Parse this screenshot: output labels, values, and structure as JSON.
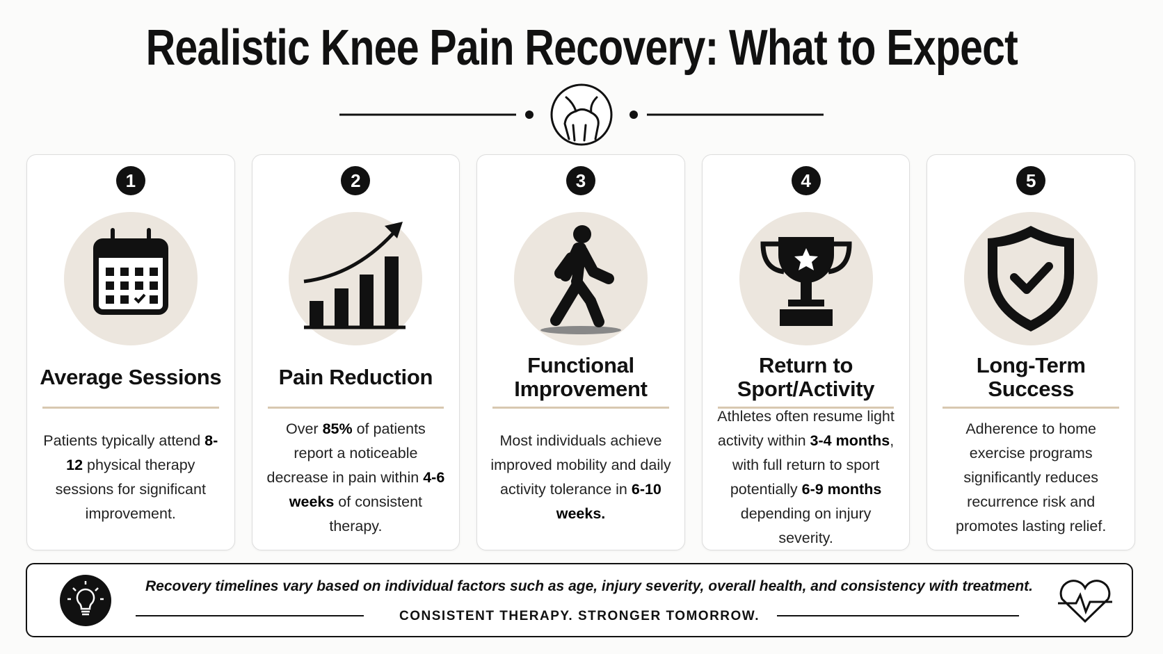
{
  "title": "Realistic Knee Pain Recovery: What to Expect",
  "cards": [
    {
      "number": 1,
      "heading": [
        "Average Sessions"
      ],
      "body": [
        {
          "text": "Patients typically attend ",
          "bold": false
        },
        {
          "text": "8-12",
          "bold": true
        },
        {
          "text": " physical therapy sessions for significant improvement.",
          "bold": false
        }
      ]
    },
    {
      "number": 2,
      "heading": [
        "Pain Reduction"
      ],
      "body": [
        {
          "text": "Over ",
          "bold": false
        },
        {
          "text": "85%",
          "bold": true
        },
        {
          "text": " of patients report a noticeable decrease in pain within ",
          "bold": false
        },
        {
          "text": "4-6 weeks",
          "bold": true
        },
        {
          "text": " of consistent therapy.",
          "bold": false
        }
      ]
    },
    {
      "number": 3,
      "heading": [
        "Functional",
        "Improvement"
      ],
      "body": [
        {
          "text": "Most individuals achieve improved mobility and daily activity tolerance in ",
          "bold": false
        },
        {
          "text": "6-10 weeks.",
          "bold": true
        }
      ]
    },
    {
      "number": 4,
      "heading": [
        "Return to",
        "Sport/Activity"
      ],
      "body": [
        {
          "text": "Athletes often resume light activity within ",
          "bold": false
        },
        {
          "text": "3-4 months",
          "bold": true
        },
        {
          "text": ", with full return to sport potentially ",
          "bold": false
        },
        {
          "text": "6-9 months",
          "bold": true
        },
        {
          "text": " depending on injury severity.",
          "bold": false
        }
      ]
    },
    {
      "number": 5,
      "heading": [
        "Long-Term",
        "Success"
      ],
      "body": [
        {
          "text": "Adherence to home exercise programs significantly reduces recurrence risk and promotes lasting relief.",
          "bold": false
        }
      ]
    }
  ],
  "footer": {
    "note": "Recovery timelines vary based on individual factors such as age, injury severity, overall health, and consistency with treatment.",
    "tagline": "CONSISTENT THERAPY. STRONGER TOMORROW."
  }
}
